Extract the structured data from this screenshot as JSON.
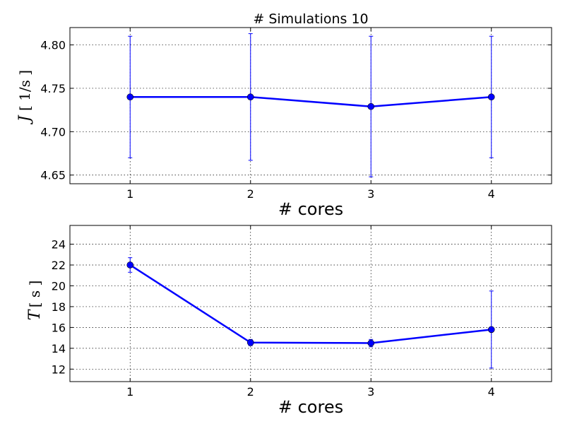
{
  "chart_data": [
    {
      "type": "line",
      "title": "# Simulations 10",
      "xlabel": "# cores",
      "ylabel": "J",
      "ylabel_unit": "[ 1/s ]",
      "x": [
        1,
        2,
        3,
        4
      ],
      "xticks": [
        "1",
        "2",
        "3",
        "4"
      ],
      "xlim": [
        0.5,
        4.5
      ],
      "ylim": [
        4.64,
        4.82
      ],
      "yticks": [
        "4.65",
        "4.70",
        "4.75",
        "4.80"
      ],
      "grid": true,
      "color": "#0000ff",
      "series": [
        {
          "values": [
            4.74,
            4.74,
            4.729,
            4.74
          ],
          "error": [
            0.07,
            0.073,
            0.081,
            0.07
          ]
        }
      ]
    },
    {
      "type": "line",
      "title": "",
      "xlabel": "# cores",
      "ylabel": "T",
      "ylabel_unit": "[ s ]",
      "x": [
        1,
        2,
        3,
        4
      ],
      "xticks": [
        "1",
        "2",
        "3",
        "4"
      ],
      "xlim": [
        0.5,
        4.5
      ],
      "ylim": [
        10.8,
        25.8
      ],
      "yticks": [
        "12",
        "14",
        "16",
        "18",
        "20",
        "22",
        "24"
      ],
      "grid": true,
      "color": "#0000ff",
      "series": [
        {
          "values": [
            22.0,
            14.55,
            14.5,
            15.8
          ],
          "error": [
            0.7,
            0.3,
            0.35,
            3.7
          ]
        }
      ]
    }
  ]
}
